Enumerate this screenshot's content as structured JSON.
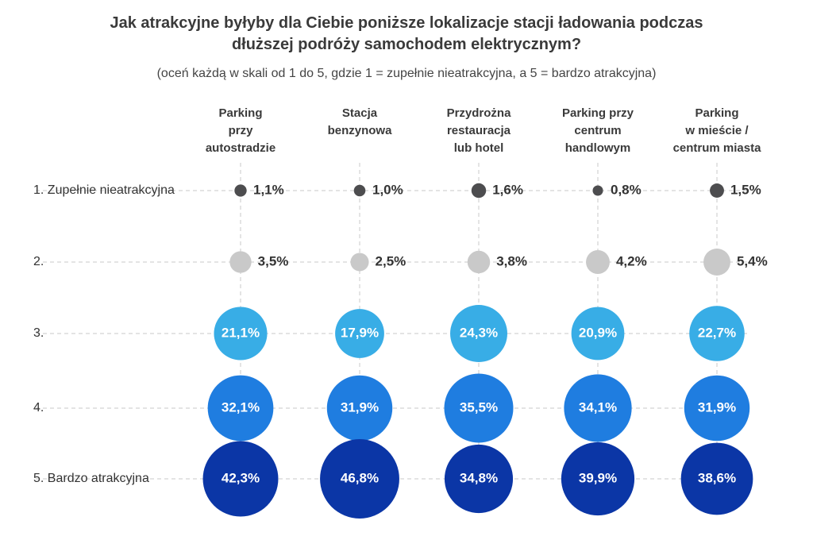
{
  "chart_data": {
    "type": "bubble-matrix",
    "title": "Jak atrakcyjne byłyby dla Ciebie poniższe lokalizacje stacji ładowania podczas\ndłuższej podróży samochodem elektrycznym?",
    "subtitle": "(oceń każdą w skali od 1 do 5, gdzie 1 = zupełnie nieatrakcyjna, a 5 = bardzo atrakcyjna)",
    "categories": [
      "Parking\nprzy\nautostradzie",
      "Stacja\nbenzynowa",
      "Przydrożna\nrestauracja\nlub hotel",
      "Parking przy\ncentrum\nhandlowym",
      "Parking\nw mieście /\ncentrum miasta"
    ],
    "series": [
      {
        "name": "1. Zupełnie nieatrakcyjna",
        "color": "#4d4d4f",
        "values": [
          1.1,
          1.0,
          1.6,
          0.8,
          1.5
        ],
        "value_labels": [
          "1,1%",
          "1,0%",
          "1,6%",
          "0,8%",
          "1,5%"
        ]
      },
      {
        "name": "2.",
        "color": "#c9c9c9",
        "values": [
          3.5,
          2.5,
          3.8,
          4.2,
          5.4
        ],
        "value_labels": [
          "3,5%",
          "2,5%",
          "3,8%",
          "4,2%",
          "5,4%"
        ]
      },
      {
        "name": "3.",
        "color": "#38ade6",
        "values": [
          21.1,
          17.9,
          24.3,
          20.9,
          22.7
        ],
        "value_labels": [
          "21,1%",
          "17,9%",
          "24,3%",
          "20,9%",
          "22,7%"
        ]
      },
      {
        "name": "4.",
        "color": "#1f7de0",
        "values": [
          32.1,
          31.9,
          35.5,
          34.1,
          31.9
        ],
        "value_labels": [
          "32,1%",
          "31,9%",
          "35,5%",
          "34,1%",
          "31,9%"
        ]
      },
      {
        "name": "5. Bardzo atrakcyjna",
        "color": "#0b36a6",
        "values": [
          42.3,
          46.8,
          34.8,
          39.9,
          38.6
        ],
        "value_labels": [
          "42,3%",
          "46,8%",
          "34,8%",
          "39,9%",
          "38,6%"
        ]
      }
    ]
  }
}
